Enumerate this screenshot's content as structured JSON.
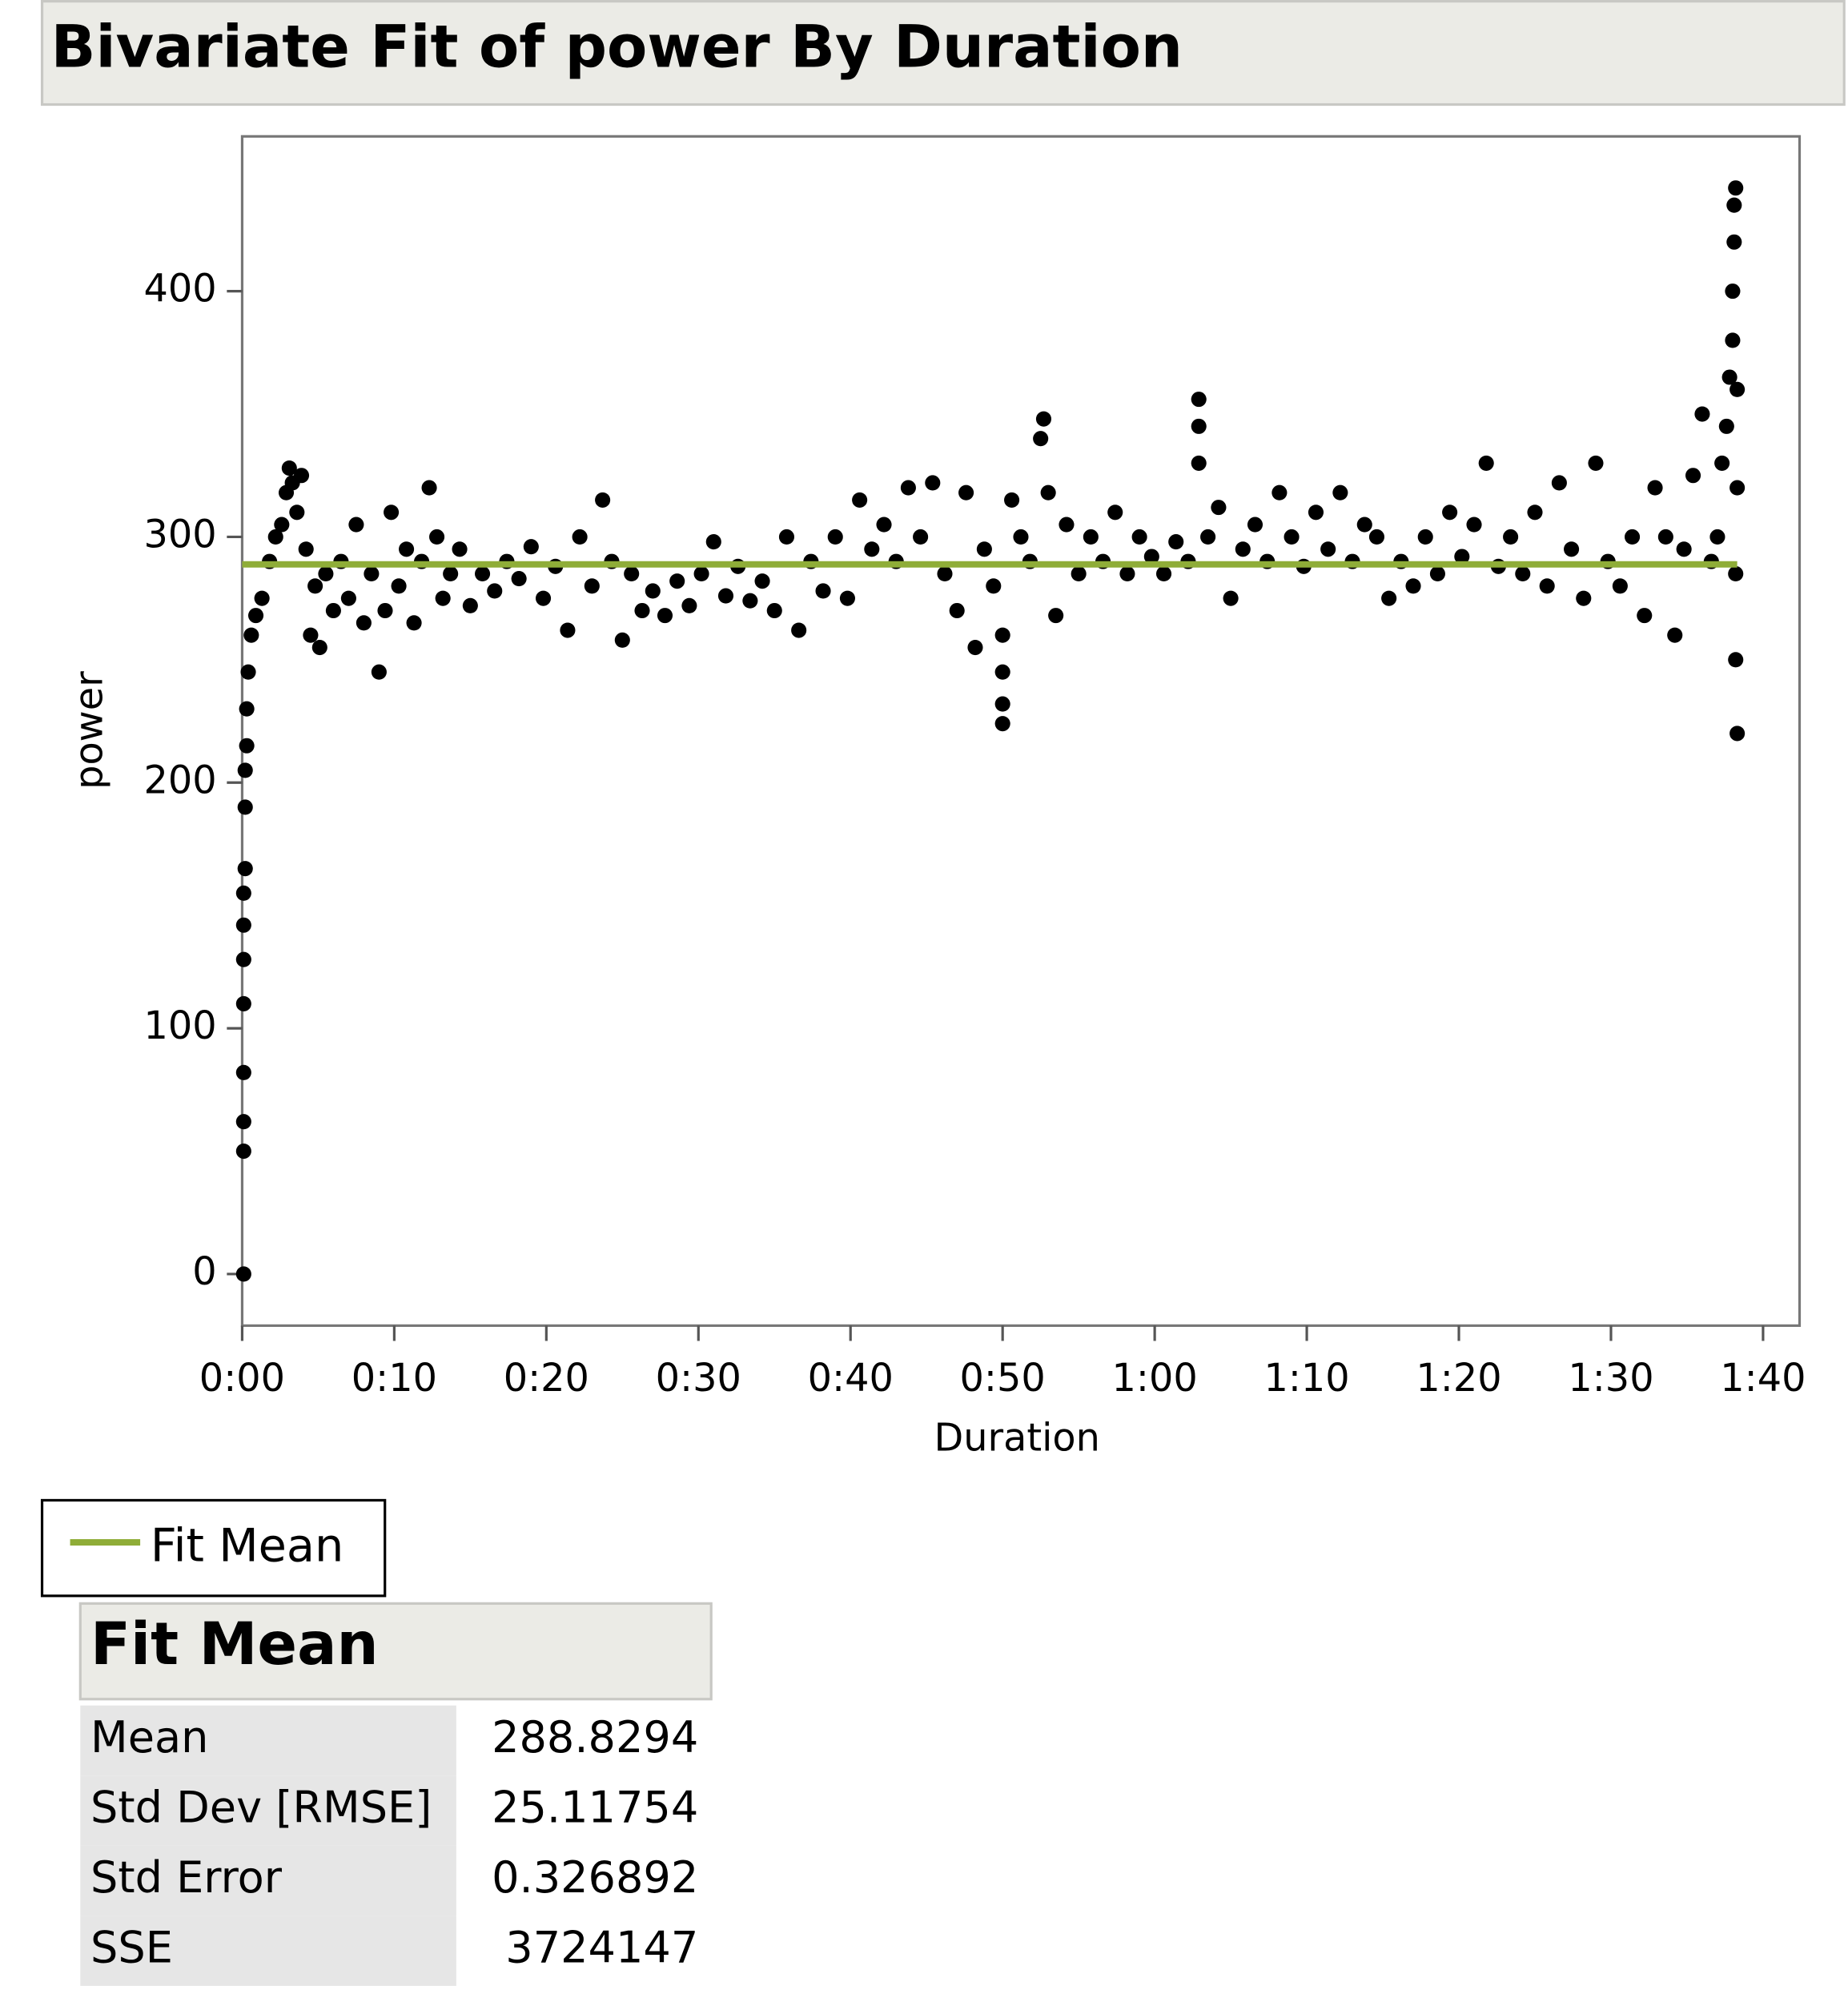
{
  "chart_data": {
    "type": "scatter",
    "title": "Bivariate Fit of power By Duration",
    "x_label": "Duration",
    "y_label": "power",
    "xlim": [
      0,
      102.4
    ],
    "ylim": [
      -21,
      463
    ],
    "xticks": [
      {
        "value": 0,
        "label": "0:00"
      },
      {
        "value": 10,
        "label": "0:10"
      },
      {
        "value": 20,
        "label": "0:20"
      },
      {
        "value": 30,
        "label": "0:30"
      },
      {
        "value": 40,
        "label": "0:40"
      },
      {
        "value": 50,
        "label": "0:50"
      },
      {
        "value": 60,
        "label": "1:00"
      },
      {
        "value": 70,
        "label": "1:10"
      },
      {
        "value": 80,
        "label": "1:20"
      },
      {
        "value": 90,
        "label": "1:30"
      },
      {
        "value": 100,
        "label": "1:40"
      }
    ],
    "yticks": [
      0,
      100,
      200,
      300,
      400
    ],
    "series": [
      {
        "color": "#000000",
        "x": [
          0.1,
          0.1,
          0.1,
          0.1,
          0.1,
          0.1,
          0.1,
          0.1,
          0.2,
          0.2,
          0.2,
          0.3,
          0.3,
          0.4,
          0.6,
          0.9,
          1.3,
          1.8,
          2.2,
          2.6,
          2.9,
          3.1,
          3.3,
          3.6,
          3.9,
          4.2,
          4.5,
          4.8,
          5.1,
          5.5,
          6.0,
          6.5,
          7.0,
          7.5,
          8.0,
          8.5,
          9.0,
          9.4,
          9.8,
          10.3,
          10.8,
          11.3,
          11.8,
          12.3,
          12.8,
          13.2,
          13.7,
          14.3,
          15.0,
          15.8,
          16.6,
          17.4,
          18.2,
          19.0,
          19.8,
          20.6,
          21.4,
          22.2,
          23.0,
          23.7,
          24.3,
          25.0,
          25.6,
          26.3,
          27.0,
          27.8,
          28.6,
          29.4,
          30.2,
          31.0,
          31.8,
          32.6,
          33.4,
          34.2,
          35.0,
          35.8,
          36.6,
          37.4,
          38.2,
          39.0,
          39.8,
          40.6,
          41.4,
          42.2,
          43.0,
          43.8,
          44.6,
          45.4,
          46.2,
          47.0,
          47.6,
          48.2,
          48.8,
          49.4,
          50.0,
          50.0,
          50.0,
          50.0,
          50.6,
          51.2,
          51.8,
          52.5,
          52.7,
          53.0,
          53.5,
          54.2,
          55.0,
          55.8,
          56.6,
          57.4,
          58.2,
          59.0,
          59.8,
          60.6,
          61.4,
          62.2,
          62.9,
          62.9,
          62.9,
          63.5,
          64.2,
          65.0,
          65.8,
          66.6,
          67.4,
          68.2,
          69.0,
          69.8,
          70.6,
          71.4,
          72.2,
          73.0,
          73.8,
          74.6,
          75.4,
          76.2,
          77.0,
          77.8,
          78.6,
          79.4,
          80.2,
          81.0,
          81.8,
          82.6,
          83.4,
          84.2,
          85.0,
          85.8,
          86.6,
          87.4,
          88.2,
          89.0,
          89.8,
          90.6,
          91.4,
          92.2,
          92.9,
          93.6,
          94.2,
          94.8,
          95.4,
          96.0,
          96.6,
          97.0,
          97.3,
          97.6,
          97.8,
          98.0,
          98.0,
          98.1,
          98.1,
          98.2,
          98.2,
          98.2,
          98.3,
          98.3,
          98.3
        ],
        "values": [
          0,
          50,
          62,
          82,
          110,
          128,
          142,
          155,
          165,
          190,
          205,
          215,
          230,
          245,
          260,
          268,
          275,
          290,
          300,
          305,
          318,
          328,
          322,
          310,
          325,
          295,
          260,
          280,
          255,
          285,
          270,
          290,
          275,
          305,
          265,
          285,
          245,
          270,
          310,
          280,
          295,
          265,
          290,
          320,
          300,
          275,
          285,
          295,
          272,
          285,
          278,
          290,
          283,
          296,
          275,
          288,
          262,
          300,
          280,
          315,
          290,
          258,
          285,
          270,
          278,
          268,
          282,
          272,
          285,
          298,
          276,
          288,
          274,
          282,
          270,
          300,
          262,
          290,
          278,
          300,
          275,
          315,
          295,
          305,
          290,
          320,
          300,
          322,
          285,
          270,
          318,
          255,
          295,
          280,
          260,
          245,
          232,
          224,
          315,
          300,
          290,
          340,
          348,
          318,
          268,
          305,
          285,
          300,
          290,
          310,
          285,
          300,
          292,
          285,
          298,
          290,
          330,
          345,
          356,
          300,
          312,
          275,
          295,
          305,
          290,
          318,
          300,
          288,
          310,
          295,
          318,
          290,
          305,
          300,
          275,
          290,
          280,
          300,
          285,
          310,
          292,
          305,
          330,
          288,
          300,
          285,
          310,
          280,
          322,
          295,
          275,
          330,
          290,
          280,
          300,
          268,
          320,
          300,
          260,
          295,
          325,
          350,
          290,
          300,
          330,
          345,
          365,
          380,
          400,
          420,
          435,
          442,
          285,
          250,
          220,
          320,
          360
        ]
      }
    ],
    "fit": {
      "name": "Fit Mean",
      "value": 288.8294,
      "x": [
        0,
        98.3
      ],
      "color": "#8fad38"
    }
  },
  "table": {
    "title": "Fit Mean",
    "rows": [
      [
        "Mean",
        "288.8294"
      ],
      [
        "Std Dev [RMSE]",
        "25.11754"
      ],
      [
        "Std Error",
        "0.326892"
      ],
      [
        "SSE",
        "3724147"
      ]
    ]
  }
}
